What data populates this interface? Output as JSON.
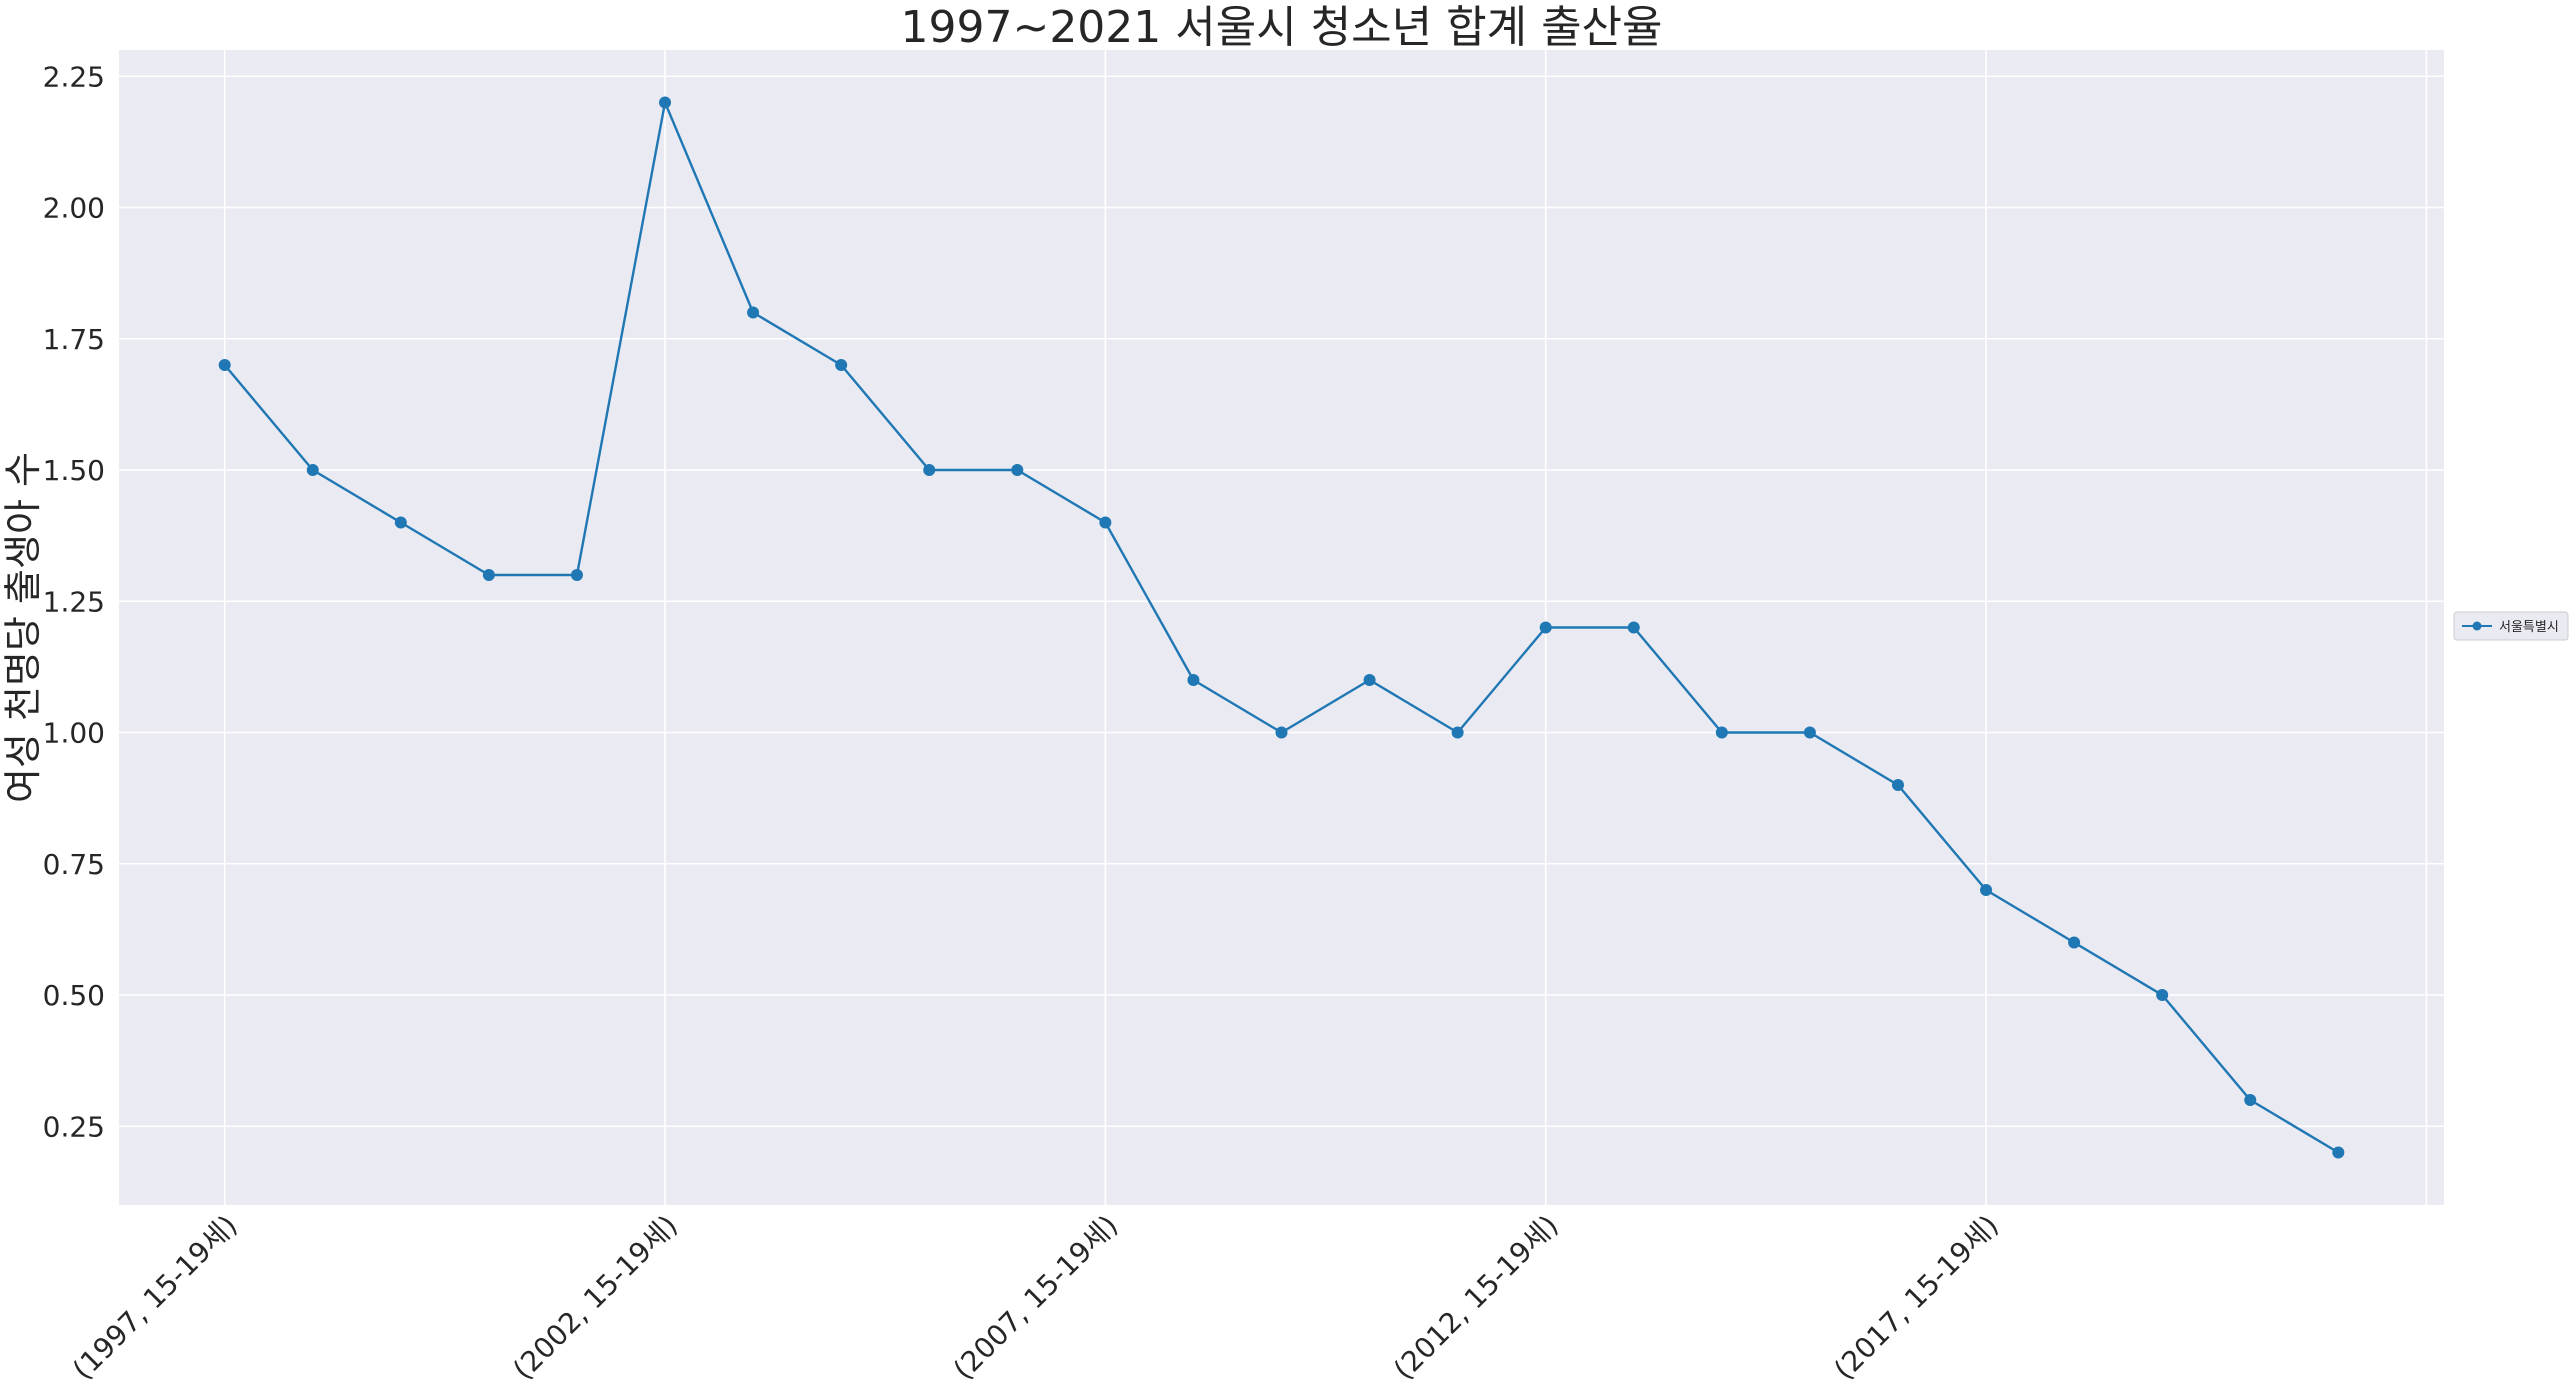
{
  "chart_data": {
    "type": "line",
    "title": "1997~2021 서울시 청소년 합계 출산율",
    "xlabel": "",
    "ylabel": "여성 천명당 출생아 수",
    "ylim": [
      0.1,
      2.3
    ],
    "yticks": [
      0.25,
      0.5,
      0.75,
      1.0,
      1.25,
      1.5,
      1.75,
      2.0,
      2.25
    ],
    "ytick_labels": [
      "0.25",
      "0.50",
      "0.75",
      "1.00",
      "1.25",
      "1.50",
      "1.75",
      "2.00",
      "2.25"
    ],
    "x": [
      1997,
      1998,
      1999,
      2000,
      2001,
      2002,
      2003,
      2004,
      2005,
      2006,
      2007,
      2008,
      2009,
      2010,
      2011,
      2012,
      2013,
      2014,
      2015,
      2016,
      2017,
      2018,
      2019,
      2020,
      2021
    ],
    "xticks": [
      1997,
      2002,
      2007,
      2012,
      2017,
      2022
    ],
    "xtick_labels": [
      "(1997, 15-19세)",
      "(2002, 15-19세)",
      "(2007, 15-19세)",
      "(2012, 15-19세)",
      "(2017, 15-19세)",
      ""
    ],
    "series": [
      {
        "name": "서울특별시",
        "color": "#1f77b4",
        "marker": "circle",
        "values": [
          1.7,
          1.5,
          1.4,
          1.3,
          1.3,
          2.2,
          1.8,
          1.7,
          1.5,
          1.5,
          1.4,
          1.1,
          1.0,
          1.1,
          1.0,
          1.2,
          1.2,
          1.0,
          1.0,
          0.9,
          0.7,
          0.6,
          0.5,
          0.3,
          0.2
        ]
      }
    ],
    "grid": true,
    "legend_position": "right",
    "background": "#eaeaf2",
    "grid_color": "#ffffff"
  }
}
